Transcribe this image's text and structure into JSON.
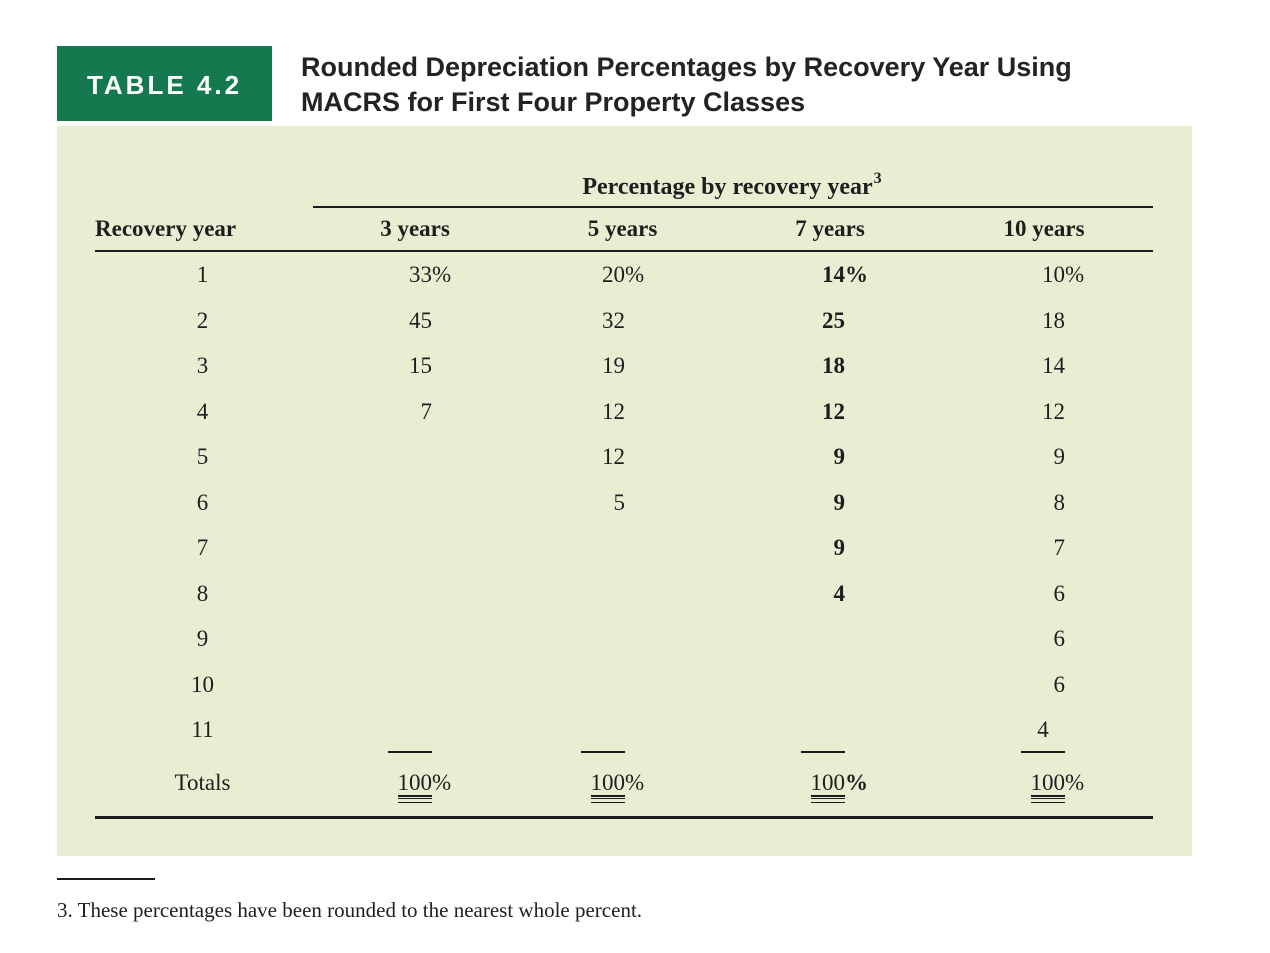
{
  "header": {
    "table_label": "TABLE 4.2",
    "title_line1": "Rounded Depreciation Percentages by Recovery Year Using",
    "title_line2": "MACRS for First Four Property Classes"
  },
  "table": {
    "spanning_header": "Percentage by recovery year",
    "note_ref": "3",
    "percent_sign": "%",
    "columns": [
      "Recovery year",
      "3 years",
      "5 years",
      "7 years",
      "10 years"
    ],
    "rows": [
      {
        "year": "1",
        "values": [
          "33",
          "20",
          "14",
          "10"
        ]
      },
      {
        "year": "2",
        "values": [
          "45",
          "32",
          "25",
          "18"
        ]
      },
      {
        "year": "3",
        "values": [
          "15",
          "19",
          "18",
          "14"
        ]
      },
      {
        "year": "4",
        "values": [
          "7",
          "12",
          "12",
          "12"
        ]
      },
      {
        "year": "5",
        "values": [
          "",
          "12",
          "9",
          "9"
        ]
      },
      {
        "year": "6",
        "values": [
          "",
          "5",
          "9",
          "8"
        ]
      },
      {
        "year": "7",
        "values": [
          "",
          "",
          "9",
          "7"
        ]
      },
      {
        "year": "8",
        "values": [
          "",
          "",
          "4",
          "6"
        ]
      },
      {
        "year": "9",
        "values": [
          "",
          "",
          "",
          "6"
        ]
      },
      {
        "year": "10",
        "values": [
          "",
          "",
          "",
          "6"
        ]
      },
      {
        "year": "11",
        "values": [
          "",
          "",
          "",
          "4"
        ]
      }
    ],
    "totals_label": "Totals",
    "totals": [
      "100",
      "100",
      "100",
      "100"
    ]
  },
  "footnote": "3. These percentages have been rounded to the nearest whole percent.",
  "colors": {
    "label_box_green": "#15794F",
    "panel_background": "#E9EED3",
    "text": "#1E1E1E"
  }
}
